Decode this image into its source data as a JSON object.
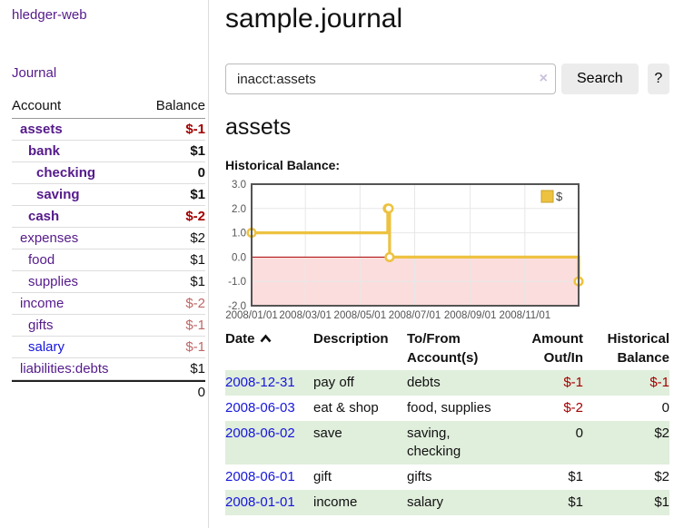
{
  "colors": {
    "accent_purple": "#551a8b",
    "link_blue": "#1616dd",
    "negative_red": "#a40000",
    "negative_light_red": "#c06666",
    "row_stripe_green": "#e0eedc"
  },
  "sidebar": {
    "app_title": "hledger-web",
    "journal_link": "Journal",
    "accounts_table": {
      "headers": {
        "account": "Account",
        "balance": "Balance"
      },
      "rows": [
        {
          "name": "assets",
          "balance": "$-1"
        },
        {
          "name": "bank",
          "balance": "$1"
        },
        {
          "name": "checking",
          "balance": "0"
        },
        {
          "name": "saving",
          "balance": "$1"
        },
        {
          "name": "cash",
          "balance": "$-2"
        },
        {
          "name": "expenses",
          "balance": "$2"
        },
        {
          "name": "food",
          "balance": "$1"
        },
        {
          "name": "supplies",
          "balance": "$1"
        },
        {
          "name": "income",
          "balance": "$-2"
        },
        {
          "name": "gifts",
          "balance": "$-1"
        },
        {
          "name": "salary",
          "balance": "$-1"
        },
        {
          "name": "liabilities:debts",
          "balance": "$1"
        }
      ],
      "total": "0"
    }
  },
  "main": {
    "title": "sample.journal",
    "search": {
      "value": "inacct:assets",
      "clear_icon": "×",
      "search_button": "Search",
      "help_button": "?"
    },
    "account_heading": "assets",
    "chart_label": "Historical Balance:",
    "register": {
      "headers": {
        "date": "Date",
        "description": "Description",
        "accounts": "To/From Account(s)",
        "amount": "Amount Out/In",
        "balance": "Historical Balance"
      },
      "rows": [
        {
          "date": "2008-12-31",
          "description": "pay off",
          "accounts": "debts",
          "amount": "$-1",
          "balance": "$-1"
        },
        {
          "date": "2008-06-03",
          "description": "eat & shop",
          "accounts": "food, supplies",
          "amount": "$-2",
          "balance": "0"
        },
        {
          "date": "2008-06-02",
          "description": "save",
          "accounts": "saving, checking",
          "amount": "0",
          "balance": "$2"
        },
        {
          "date": "2008-06-01",
          "description": "gift",
          "accounts": "gifts",
          "amount": "$1",
          "balance": "$2"
        },
        {
          "date": "2008-01-01",
          "description": "income",
          "accounts": "salary",
          "amount": "$1",
          "balance": "$1"
        }
      ]
    }
  },
  "chart_data": {
    "type": "line",
    "title": "Historical Balance",
    "legend": "$",
    "legend_position": "top-right",
    "grid": true,
    "series": [
      {
        "name": "$",
        "step": true,
        "points": [
          [
            "2008/01/01",
            1
          ],
          [
            "2008/06/01",
            2
          ],
          [
            "2008/06/02",
            2
          ],
          [
            "2008/06/03",
            0
          ],
          [
            "2008/12/31",
            -1
          ]
        ]
      }
    ],
    "x_range": [
      "2008/01/01",
      "2008/12/31"
    ],
    "x_ticks": [
      "2008/01/01",
      "2008/03/01",
      "2008/05/01",
      "2008/07/01",
      "2008/09/01",
      "2008/11/01"
    ],
    "y_ticks": [
      "3.0",
      "2.0",
      "1.0",
      "0.0",
      "-1.0",
      "-2.0"
    ],
    "ylim": [
      -2,
      3
    ],
    "colors": {
      "line": "#edc240",
      "marker_fill": "#ffffff",
      "negative_region": "#fbdddd",
      "zero_line": "#aa0000",
      "grid": "#e7e7e7",
      "border": "#545454",
      "tick_text": "#545454",
      "legend_swatch_border": "#c7a22e"
    }
  }
}
